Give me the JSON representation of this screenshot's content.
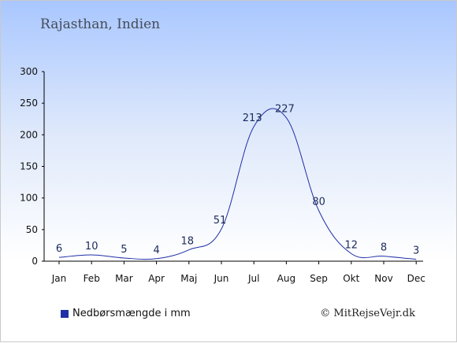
{
  "header": {
    "title": "Rajasthan, Indien"
  },
  "legend": {
    "label": "Nedbørsmængde i mm",
    "color": "#1f2fa5"
  },
  "footer": {
    "credit": "© MitRejseVejr.dk"
  },
  "chart_data": {
    "type": "line",
    "categories": [
      "Jan",
      "Feb",
      "Mar",
      "Apr",
      "Maj",
      "Jun",
      "Jul",
      "Aug",
      "Sep",
      "Okt",
      "Nov",
      "Dec"
    ],
    "series": [
      {
        "name": "Nedbørsmængde i mm",
        "values": [
          6,
          10,
          5,
          4,
          18,
          51,
          213,
          227,
          80,
          12,
          8,
          3
        ]
      }
    ],
    "data_labels": [
      "6",
      "10",
      "5",
      "4",
      "18",
      "51",
      "213",
      "227",
      "80",
      "12",
      "8",
      "3"
    ],
    "yticks": [
      0,
      50,
      100,
      150,
      200,
      250,
      300
    ],
    "ylim": [
      0,
      300
    ],
    "line_color": "#1f2fa5",
    "grid": false,
    "legend_position": "bottom-left"
  }
}
